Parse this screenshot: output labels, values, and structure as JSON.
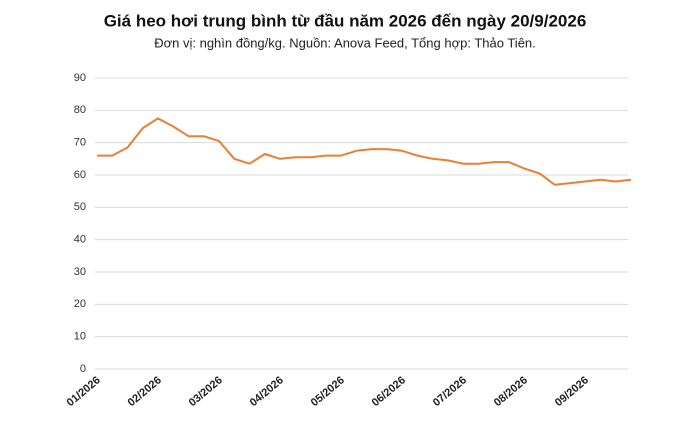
{
  "chart_data": {
    "type": "line",
    "title": "Giá heo hơi trung bình từ đầu năm 2026 đến ngày 20/9/2026",
    "subtitle": "Đơn vị: nghìn đồng/kg. Nguồn: Anova Feed, Tổng hợp: Thảo Tiên.",
    "categories": [
      "01/2026",
      null,
      null,
      null,
      "02/2026",
      null,
      null,
      null,
      "03/2026",
      null,
      null,
      null,
      "04/2026",
      null,
      null,
      null,
      "05/2026",
      null,
      null,
      null,
      "06/2026",
      null,
      null,
      null,
      "07/2026",
      null,
      null,
      null,
      "08/2026",
      null,
      null,
      null,
      "09/2026",
      null,
      null,
      null
    ],
    "series": [
      {
        "name": "Giá heo hơi",
        "color": "#ed7d31",
        "values": [
          66,
          66,
          68.5,
          74.5,
          77.5,
          75,
          72,
          72,
          70.5,
          65,
          63.5,
          66.5,
          65,
          65.5,
          65.5,
          66,
          66,
          67.5,
          68,
          68,
          67.5,
          66,
          65,
          64.5,
          63.5,
          63.5,
          64,
          64,
          62,
          60.5,
          57,
          57.5,
          58,
          58.5,
          58,
          58.5
        ]
      }
    ],
    "ylim": [
      0,
      90
    ],
    "yticks": [
      0,
      10,
      20,
      30,
      40,
      50,
      60,
      70,
      80,
      90
    ],
    "grid": true
  }
}
